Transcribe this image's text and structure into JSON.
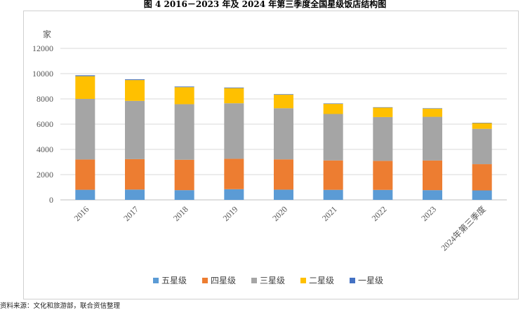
{
  "title": "图 4    2016－2023 年及 2024 年第三季度全国星级饭店结构图",
  "source": "资料来源：文化和旅游部，联合资信整理",
  "chart_data": {
    "type": "bar",
    "stacked": true,
    "title": "图 4    2016－2023 年及 2024 年第三季度全国星级饭店结构图",
    "ylabel": "家",
    "xlabel": "",
    "ylim": [
      0,
      12000
    ],
    "yticks": [
      0,
      2000,
      4000,
      6000,
      8000,
      10000,
      12000
    ],
    "grid": true,
    "legend_position": "bottom",
    "categories": [
      "2016",
      "2017",
      "2018",
      "2019",
      "2020",
      "2021",
      "2022",
      "2023",
      "2024年第三季度"
    ],
    "series": [
      {
        "name": "五星级",
        "color": "#5b9bd5",
        "values": [
          800,
          816,
          770,
          845,
          810,
          795,
          790,
          770,
          750
        ]
      },
      {
        "name": "四星级",
        "color": "#ed7d31",
        "values": [
          2400,
          2412,
          2410,
          2410,
          2400,
          2330,
          2300,
          2350,
          2080
        ]
      },
      {
        "name": "三星级",
        "color": "#a5a5a5",
        "values": [
          4800,
          4615,
          4400,
          4400,
          4050,
          3680,
          3470,
          3460,
          2800
        ]
      },
      {
        "name": "二星级",
        "color": "#ffc000",
        "values": [
          1800,
          1650,
          1350,
          1200,
          1070,
          800,
          750,
          650,
          450
        ]
      },
      {
        "name": "一星级",
        "color": "#4472c4",
        "values": [
          70,
          57,
          50,
          45,
          40,
          35,
          30,
          30,
          30
        ]
      }
    ]
  }
}
